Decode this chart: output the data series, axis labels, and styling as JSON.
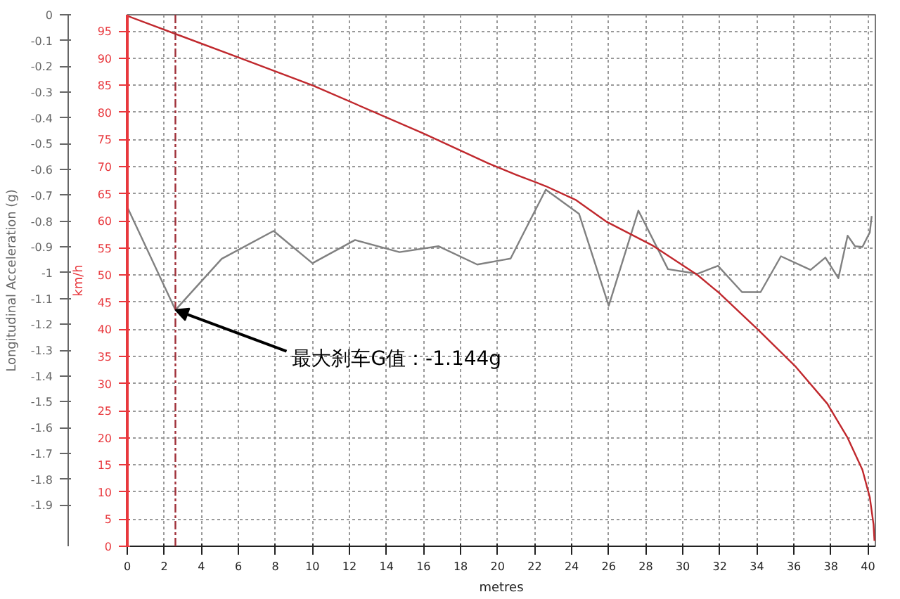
{
  "chart_data": {
    "type": "line",
    "xlabel": "metres",
    "ylabel": "Longitudinal Acceleration (g)",
    "y2label": "km/h",
    "xlim": [
      0,
      40.4
    ],
    "xticks": [
      0,
      2,
      4,
      6,
      8,
      10,
      12,
      14,
      16,
      18,
      20,
      22,
      24,
      26,
      28,
      30,
      32,
      34,
      36,
      38,
      40
    ],
    "ylim": [
      -2.06,
      0
    ],
    "yticks": [
      0,
      -0.1,
      -0.2,
      -0.3,
      -0.4,
      -0.5,
      -0.6,
      -0.7,
      -0.8,
      -0.9,
      -1,
      -1.1,
      -1.2,
      -1.3,
      -1.4,
      -1.5,
      -1.6,
      -1.7,
      -1.8,
      -1.9
    ],
    "y2lim": [
      0,
      98
    ],
    "y2ticks": [
      0,
      5,
      10,
      15,
      20,
      25,
      30,
      35,
      40,
      45,
      50,
      55,
      60,
      65,
      70,
      75,
      80,
      85,
      90,
      95
    ],
    "grid": true,
    "series": [
      {
        "color": "#808080",
        "x": [
          0,
          2.6,
          5.1,
          7.9,
          10.0,
          12.3,
          14.7,
          16.8,
          18.9,
          20.3,
          20.7,
          22.6,
          24.4,
          26.0,
          27.6,
          29.2,
          30.8,
          31.9,
          33.2,
          34.2,
          35.3,
          36.9,
          37.7,
          38.4,
          38.9,
          39.3,
          39.7,
          40.1,
          40.2
        ],
        "values": [
          -0.745,
          -1.144,
          -0.946,
          -0.838,
          -0.963,
          -0.873,
          -0.92,
          -0.897,
          -0.968,
          -0.95,
          -0.945,
          -0.678,
          -0.772,
          -1.128,
          -0.759,
          -0.986,
          -1.004,
          -0.973,
          -1.075,
          -1.075,
          -0.936,
          -0.989,
          -0.941,
          -1.021,
          -0.856,
          -0.897,
          -0.9,
          -0.843,
          -0.78
        ]
      },
      {
        "color": "#c0282d",
        "axis": "y2",
        "x": [
          0,
          6.1,
          10.0,
          16.0,
          19.5,
          21.0,
          22.6,
          24.2,
          25.9,
          28.4,
          30.8,
          32.0,
          34.1,
          36.1,
          37.8,
          38.9,
          39.7,
          40.1,
          40.3,
          40.35
        ],
        "values": [
          97.8,
          90.0,
          85.0,
          76.1,
          70.6,
          68.5,
          66.4,
          63.9,
          59.8,
          55.4,
          50.0,
          46.6,
          39.8,
          33.1,
          26.3,
          20.0,
          14.1,
          9.0,
          4.0,
          1.0
        ]
      }
    ],
    "ref_lines": [
      {
        "axis": "x",
        "value": 2.6,
        "color": "#a0303a",
        "line_style": "dashed"
      }
    ],
    "annotations": [
      {
        "text": "最大刹车G值：-1.144g",
        "x": 2.6,
        "y": -1.144
      }
    ]
  }
}
